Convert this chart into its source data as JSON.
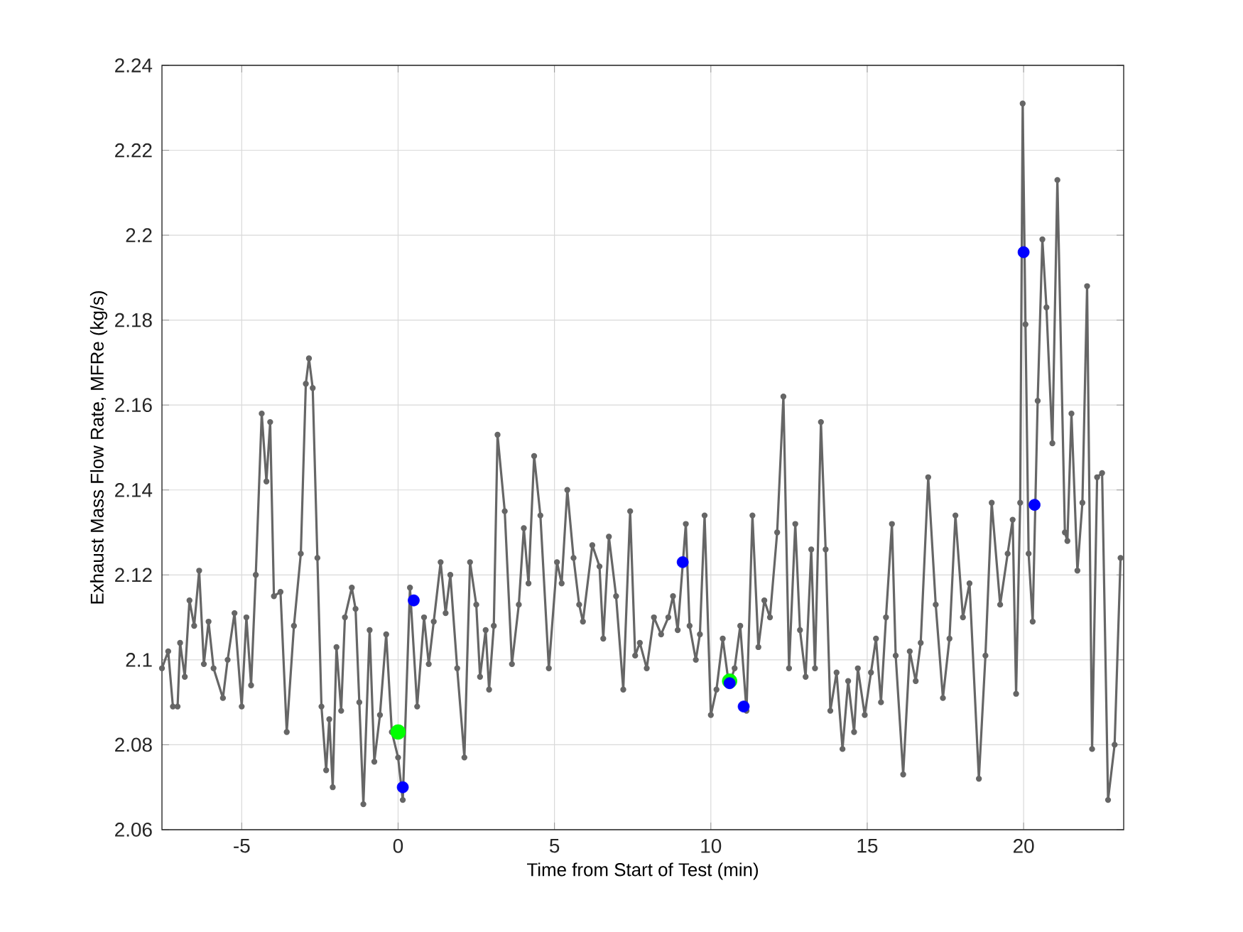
{
  "chart_data": {
    "type": "line",
    "xlabel": "Time from Start of Test (min)",
    "ylabel": "Exhaust Mass Flow Rate, MFRe (kg/s)",
    "xlim": [
      -7.55,
      23.2
    ],
    "ylim": [
      2.06,
      2.24
    ],
    "xticks": [
      -5,
      0,
      5,
      10,
      15,
      20
    ],
    "yticks": [
      2.06,
      2.08,
      2.1,
      2.12,
      2.14,
      2.16,
      2.18,
      2.2,
      2.22,
      2.24
    ],
    "grid": true,
    "marker": "circle",
    "line_style": "solid",
    "series": [
      {
        "color": "#666666",
        "x": [
          -7.55,
          -7.35,
          -7.2,
          -7.05,
          -6.97,
          -6.82,
          -6.67,
          -6.52,
          -6.36,
          -6.21,
          -6.06,
          -5.9,
          -5.6,
          -5.45,
          -5.23,
          -5.0,
          -4.85,
          -4.7,
          -4.55,
          -4.36,
          -4.21,
          -4.09,
          -3.97,
          -3.76,
          -3.56,
          -3.33,
          -3.11,
          -2.95,
          -2.85,
          -2.73,
          -2.58,
          -2.45,
          -2.3,
          -2.2,
          -2.09,
          -1.97,
          -1.82,
          -1.7,
          -1.48,
          -1.36,
          -1.24,
          -1.11,
          -0.91,
          -0.76,
          -0.58,
          -0.38,
          -0.2,
          0.0,
          0.15,
          0.38,
          0.61,
          0.83,
          0.98,
          1.14,
          1.36,
          1.52,
          1.67,
          1.89,
          2.12,
          2.3,
          2.5,
          2.62,
          2.8,
          2.91,
          3.06,
          3.18,
          3.41,
          3.64,
          3.86,
          4.02,
          4.17,
          4.35,
          4.55,
          4.82,
          5.08,
          5.23,
          5.41,
          5.61,
          5.79,
          5.91,
          6.21,
          6.44,
          6.56,
          6.74,
          6.97,
          7.2,
          7.42,
          7.58,
          7.73,
          7.95,
          8.18,
          8.41,
          8.64,
          8.79,
          8.94,
          9.2,
          9.32,
          9.52,
          9.65,
          9.8,
          10.0,
          10.18,
          10.38,
          10.58,
          10.76,
          10.94,
          11.14,
          11.33,
          11.52,
          11.71,
          11.89,
          12.12,
          12.32,
          12.5,
          12.7,
          12.85,
          13.03,
          13.21,
          13.33,
          13.52,
          13.67,
          13.82,
          14.02,
          14.21,
          14.39,
          14.58,
          14.7,
          14.92,
          15.12,
          15.28,
          15.44,
          15.6,
          15.79,
          15.91,
          16.15,
          16.36,
          16.55,
          16.71,
          16.95,
          17.19,
          17.42,
          17.63,
          17.82,
          18.06,
          18.27,
          18.57,
          18.78,
          18.98,
          19.25,
          19.49,
          19.65,
          19.76,
          19.89,
          19.97,
          20.06,
          20.16,
          20.29,
          20.45,
          20.6,
          20.73,
          20.92,
          21.08,
          21.32,
          21.4,
          21.53,
          21.72,
          21.88,
          22.03,
          22.19,
          22.35,
          22.51,
          22.7,
          22.91,
          23.1
        ],
        "values": [
          2.098,
          2.102,
          2.089,
          2.089,
          2.104,
          2.096,
          2.114,
          2.108,
          2.121,
          2.099,
          2.109,
          2.098,
          2.091,
          2.1,
          2.111,
          2.089,
          2.11,
          2.094,
          2.12,
          2.158,
          2.142,
          2.156,
          2.115,
          2.116,
          2.083,
          2.108,
          2.125,
          2.165,
          2.171,
          2.164,
          2.124,
          2.089,
          2.074,
          2.086,
          2.07,
          2.103,
          2.088,
          2.11,
          2.117,
          2.112,
          2.09,
          2.066,
          2.107,
          2.076,
          2.087,
          2.106,
          2.083,
          2.077,
          2.067,
          2.117,
          2.089,
          2.11,
          2.099,
          2.109,
          2.123,
          2.111,
          2.12,
          2.098,
          2.077,
          2.123,
          2.113,
          2.096,
          2.107,
          2.093,
          2.108,
          2.153,
          2.135,
          2.099,
          2.113,
          2.131,
          2.118,
          2.148,
          2.134,
          2.098,
          2.123,
          2.118,
          2.14,
          2.124,
          2.113,
          2.109,
          2.127,
          2.122,
          2.105,
          2.129,
          2.115,
          2.093,
          2.135,
          2.101,
          2.104,
          2.098,
          2.11,
          2.106,
          2.11,
          2.115,
          2.107,
          2.132,
          2.108,
          2.1,
          2.106,
          2.134,
          2.087,
          2.093,
          2.105,
          2.094,
          2.098,
          2.108,
          2.088,
          2.134,
          2.103,
          2.114,
          2.11,
          2.13,
          2.162,
          2.098,
          2.132,
          2.107,
          2.096,
          2.126,
          2.098,
          2.156,
          2.126,
          2.088,
          2.097,
          2.079,
          2.095,
          2.083,
          2.098,
          2.087,
          2.097,
          2.105,
          2.09,
          2.11,
          2.132,
          2.101,
          2.073,
          2.102,
          2.095,
          2.104,
          2.143,
          2.113,
          2.091,
          2.105,
          2.134,
          2.11,
          2.118,
          2.072,
          2.101,
          2.137,
          2.113,
          2.125,
          2.133,
          2.092,
          2.137,
          2.231,
          2.179,
          2.125,
          2.109,
          2.161,
          2.199,
          2.183,
          2.151,
          2.213,
          2.13,
          2.128,
          2.158,
          2.121,
          2.137,
          2.188,
          2.079,
          2.143,
          2.144,
          2.067,
          2.08,
          2.124
        ]
      },
      {
        "type": "scatter",
        "color": "#00ff00",
        "x": [
          0.0,
          10.6
        ],
        "values": [
          2.083,
          2.095
        ]
      },
      {
        "type": "scatter",
        "color": "#0000ff",
        "x": [
          0.15,
          0.5,
          9.1,
          10.6,
          11.05,
          20.0,
          20.35
        ],
        "values": [
          2.07,
          2.114,
          2.123,
          2.0945,
          2.089,
          2.196,
          2.1365
        ]
      }
    ]
  }
}
